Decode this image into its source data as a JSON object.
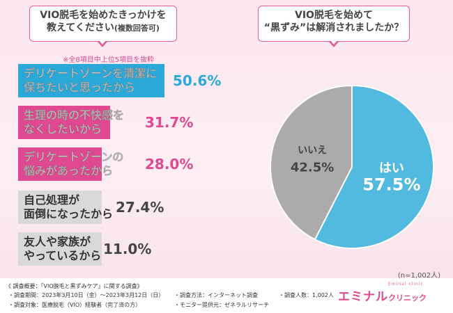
{
  "left_question": {
    "line1": "VIO脱毛を始めたきっかけを",
    "line2": "教えてください",
    "line2_small": "(複数回答可)"
  },
  "right_question": {
    "line1": "VIO脱毛を始めて",
    "line2": "“黒ずみ”は解消されましたか？"
  },
  "note": "※全8項目中上位5項目を抜粋",
  "chart_data": [
    {
      "type": "bar",
      "title": "VIO脱毛を始めたきっかけを教えてください(複数回答可)",
      "categories": [
        "デリケートゾーンを清潔に保ちたいと思ったから",
        "生理の時の不快感をなくしたいから",
        "デリケートゾーンの悩みがあったから",
        "自己処理が面倒になったから",
        "友人や家族がやっているから"
      ],
      "labels": [
        [
          "デリケートゾーンを清潔に",
          "保ちたいと思ったから"
        ],
        [
          "生理の時の不快感を",
          "なくしたいから"
        ],
        [
          "デリケートゾーンの",
          "悩みがあったから"
        ],
        [
          "自己処理が",
          "面倒になったから"
        ],
        [
          "友人や家族が",
          "やっているから"
        ]
      ],
      "values": [
        50.6,
        31.7,
        28.0,
        27.4,
        11.0
      ],
      "value_labels": [
        "50.6%",
        "31.7%",
        "28.0%",
        "27.4%",
        "11.0%"
      ],
      "colors": [
        "#2aa9d8",
        "#e0488f",
        "#e0488f",
        "#8a8a8a",
        "#8a8a8a"
      ]
    },
    {
      "type": "pie",
      "title": "VIO脱毛を始めて“黒ずみ”は解消されましたか？",
      "slices": [
        {
          "label": "はい",
          "value": 57.5,
          "value_label": "57.5%",
          "color": "#52b9df"
        },
        {
          "label": "いいえ",
          "value": 42.5,
          "value_label": "42.5%",
          "color": "#ababab"
        }
      ]
    }
  ],
  "n_label": "(n=1,002人)",
  "footer": {
    "heading": "《 調査概要：「VIO脱毛と黒ずみケア」に関する調査》",
    "period": "・調査期間：2023年3月10日（金）〜2023年3月12日（日）",
    "target": "・調査対象：医療脱毛（VIO）経験者（完了済の方）",
    "method": "・調査方法：インターネット調査",
    "provider": "・モニター提供元：ゼネラルリサーチ",
    "count": "・調査人数：1,002人",
    "logo_main": "エミナル",
    "logo_sub": "クリニック",
    "logo_tag": "Eminal clinic"
  },
  "colors": {
    "accent": "#e0488f",
    "blue": "#2aa9d8",
    "gray": "#8a8a8a"
  }
}
